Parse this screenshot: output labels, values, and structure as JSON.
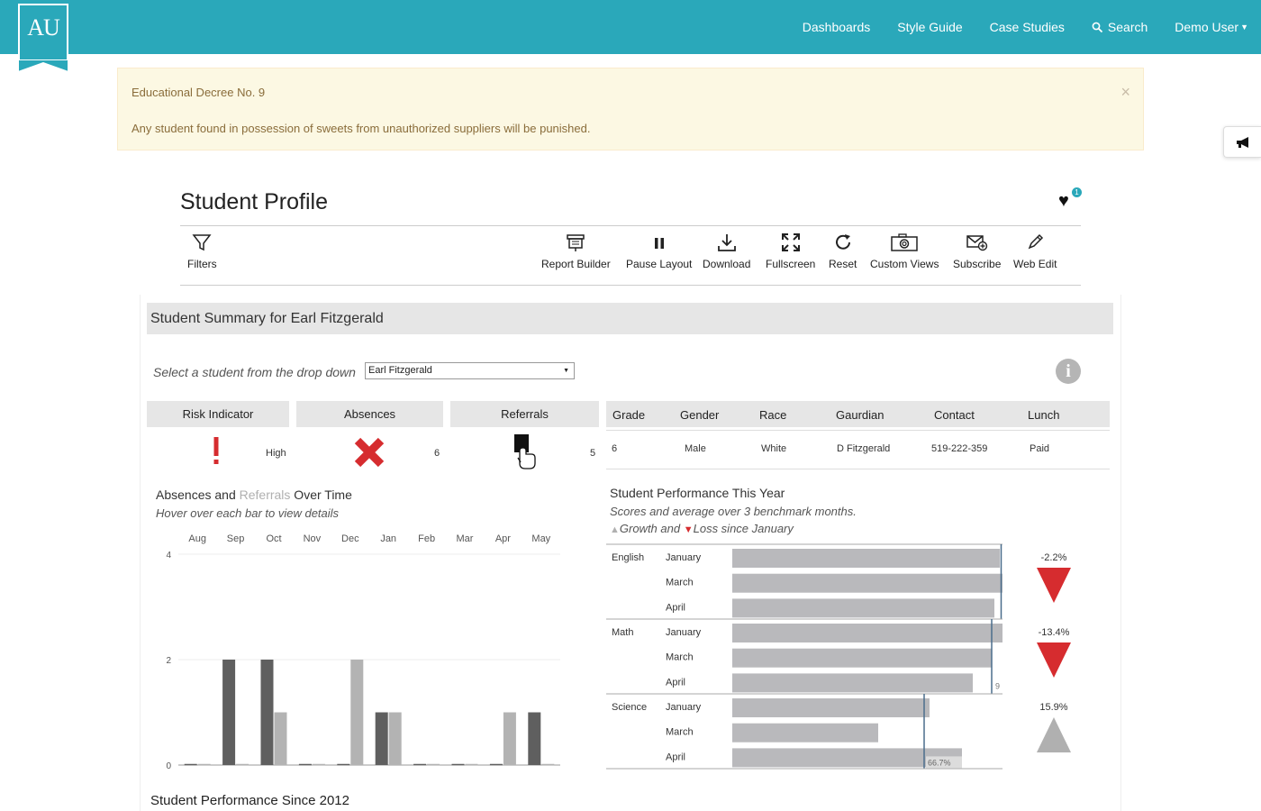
{
  "nav": {
    "logo_text": "AU",
    "links": [
      "Dashboards",
      "Style Guide",
      "Case Studies",
      "Search",
      "Demo User"
    ]
  },
  "alert": {
    "title": "Educational Decree No. 9",
    "body": "Any student found in possession of sweets from unauthorized suppliers will be punished.",
    "close": "×"
  },
  "page": {
    "title": "Student Profile",
    "favorite_count": "1"
  },
  "toolbar": {
    "filters": "Filters",
    "report_builder": "Report Builder",
    "pause_layout": "Pause Layout",
    "download": "Download",
    "fullscreen": "Fullscreen",
    "reset": "Reset",
    "custom_views": "Custom Views",
    "subscribe": "Subscribe",
    "web_edit": "Web Edit"
  },
  "dashboard": {
    "summary_title": "Student Summary for Earl Fitzgerald",
    "select_label": "Select a student from the drop down",
    "selected_student": "Earl Fitzgerald",
    "info_icon": "i",
    "indicators": {
      "headers": [
        "Risk Indicator",
        "Absences",
        "Referrals"
      ],
      "risk_value": "High",
      "absences_value": "6",
      "referrals_value": "5"
    },
    "demographics": {
      "headers": [
        "Grade",
        "Gender",
        "Race",
        "Gaurdian",
        "Contact",
        "Lunch"
      ],
      "values": [
        "6",
        "Male",
        "White",
        "D Fitzgerald",
        "519-222-359",
        "Paid"
      ]
    },
    "absences_chart": {
      "title_absences": "Absences",
      "title_and": " and ",
      "title_referrals": "Referrals",
      "title_rest": " Over Time",
      "subtitle": "Hover over each bar to view details"
    },
    "performance": {
      "title": "Student Performance This Year",
      "subtitle": "Scores and average over 3 benchmark months.",
      "legend_growth": "Growth and",
      "legend_loss": "Loss since January"
    },
    "bottom_title": "Student Performance Since 2012"
  },
  "chart_data": [
    {
      "type": "bar",
      "title": "Absences and Referrals Over Time",
      "categories": [
        "Aug",
        "Sep",
        "Oct",
        "Nov",
        "Dec",
        "Jan",
        "Feb",
        "Mar",
        "Apr",
        "May"
      ],
      "ylim": [
        0,
        4
      ],
      "yticks": [
        0,
        2,
        4
      ],
      "series": [
        {
          "name": "Absences",
          "color": "#5f5f5f",
          "values": [
            0,
            2,
            2,
            0,
            0,
            1,
            0,
            0,
            0,
            1
          ]
        },
        {
          "name": "Referrals",
          "color": "#b3b3b3",
          "values": [
            0,
            0,
            1,
            0,
            2,
            1,
            0,
            0,
            1,
            0
          ]
        }
      ]
    },
    {
      "type": "bar",
      "title": "Student Performance This Year",
      "orientation": "horizontal",
      "subjects": [
        {
          "name": "English",
          "months": [
            "January",
            "March",
            "April"
          ],
          "scores": [
            99,
            100,
            97
          ],
          "average": 99.5,
          "change_label": "-2.2%",
          "direction": "down"
        },
        {
          "name": "Math",
          "months": [
            "January",
            "March",
            "April"
          ],
          "scores": [
            100,
            96,
            89
          ],
          "average": 96,
          "change_label": "-13.4%",
          "direction": "down"
        },
        {
          "name": "Science",
          "months": [
            "January",
            "March",
            "April"
          ],
          "scores": [
            73,
            54,
            85
          ],
          "average": 71,
          "change_label": "15.9%",
          "direction": "up"
        }
      ],
      "xlim": [
        0,
        100
      ],
      "labels": [
        {
          "row": "Math April",
          "text": "9"
        },
        {
          "row": "Science April",
          "text": "66.7%"
        }
      ],
      "bar_color": "#b9b9bc",
      "down_color": "#d62c2f",
      "up_color": "#b0b0b0"
    }
  ]
}
